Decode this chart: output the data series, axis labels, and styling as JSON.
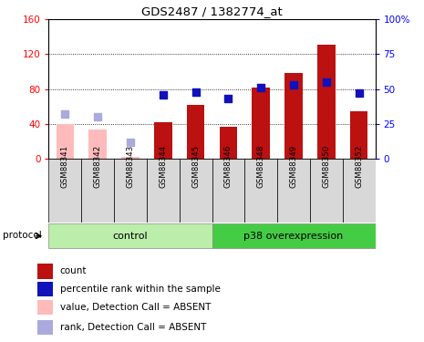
{
  "title": "GDS2487 / 1382774_at",
  "samples": [
    "GSM88341",
    "GSM88342",
    "GSM88343",
    "GSM88344",
    "GSM88345",
    "GSM88346",
    "GSM88348",
    "GSM88349",
    "GSM88350",
    "GSM88352"
  ],
  "count_values": [
    null,
    null,
    null,
    42,
    62,
    37,
    82,
    98,
    130,
    55
  ],
  "count_absent": [
    40,
    34,
    2,
    null,
    null,
    null,
    null,
    null,
    null,
    null
  ],
  "rank_values": [
    null,
    null,
    null,
    46,
    48,
    43,
    51,
    53,
    55,
    47
  ],
  "rank_absent": [
    32,
    30,
    12,
    null,
    null,
    null,
    null,
    null,
    null,
    null
  ],
  "groups": [
    {
      "label": "control",
      "start": 0,
      "end": 5,
      "color": "#bbeeaa"
    },
    {
      "label": "p38 overexpression",
      "start": 5,
      "end": 10,
      "color": "#44cc44"
    }
  ],
  "ylim_left": [
    0,
    160
  ],
  "ylim_right": [
    0,
    100
  ],
  "yticks_left": [
    0,
    40,
    80,
    120,
    160
  ],
  "yticks_right": [
    0,
    25,
    50,
    75,
    100
  ],
  "ytick_labels_left": [
    "0",
    "40",
    "80",
    "120",
    "160"
  ],
  "ytick_labels_right": [
    "0",
    "25",
    "50",
    "75",
    "100%"
  ],
  "bar_color_present": "#bb1111",
  "bar_color_absent": "#ffbbbb",
  "rank_color_present": "#1111bb",
  "rank_color_absent": "#aaaadd",
  "bar_width": 0.55,
  "rank_marker_size": 35,
  "protocol_label": "protocol",
  "legend_items": [
    {
      "label": "count",
      "color": "#bb1111"
    },
    {
      "label": "percentile rank within the sample",
      "color": "#1111bb"
    },
    {
      "label": "value, Detection Call = ABSENT",
      "color": "#ffbbbb"
    },
    {
      "label": "rank, Detection Call = ABSENT",
      "color": "#aaaadd"
    }
  ]
}
